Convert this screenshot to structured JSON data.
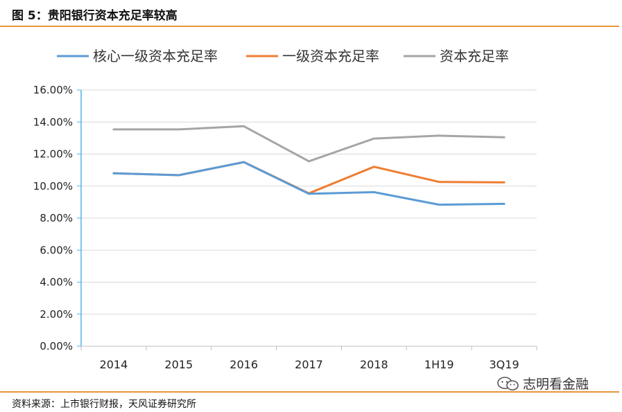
{
  "figure": {
    "title": "图 5：贵阳银行资本充足率较高",
    "source": "资料来源：上市银行财报，天风证券研究所",
    "watermark": "志明看金融",
    "watermark_icon": "wechat-icon"
  },
  "chart_data": {
    "type": "line",
    "categories": [
      "2014",
      "2015",
      "2016",
      "2017",
      "2018",
      "1H19",
      "3Q19"
    ],
    "series": [
      {
        "name": "核心一级资本充足率",
        "color": "#5b9bd5",
        "values": [
          10.8,
          10.68,
          11.5,
          9.52,
          9.62,
          8.84,
          8.89
        ]
      },
      {
        "name": "一级资本充足率",
        "color": "#ed7d31",
        "values": [
          10.8,
          10.68,
          11.5,
          9.55,
          11.21,
          10.26,
          10.23
        ]
      },
      {
        "name": "资本充足率",
        "color": "#a5a5a5",
        "values": [
          13.54,
          13.54,
          13.74,
          11.55,
          12.97,
          13.15,
          13.05
        ]
      }
    ],
    "ylim": [
      0,
      16
    ],
    "ytick_labels": [
      "0.00%",
      "2.00%",
      "4.00%",
      "6.00%",
      "8.00%",
      "10.00%",
      "12.00%",
      "14.00%",
      "16.00%"
    ],
    "grid": true,
    "legend_position": "top",
    "xlabel": "",
    "ylabel": ""
  }
}
